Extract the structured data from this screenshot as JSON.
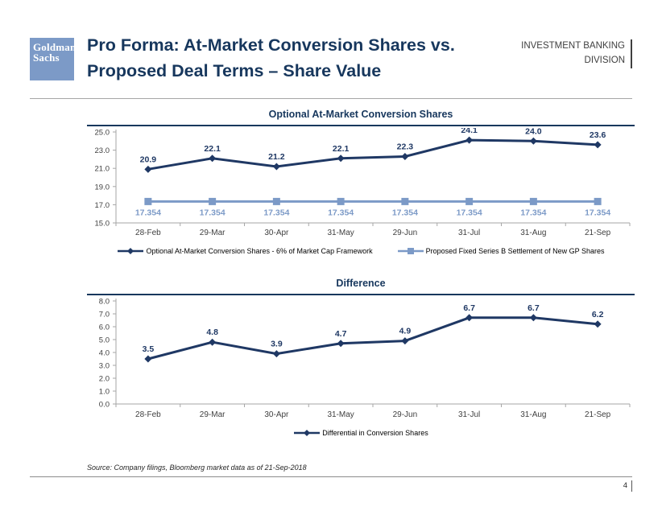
{
  "header": {
    "logo_line1": "Goldman",
    "logo_line2": "Sachs",
    "title_line1": "Pro Forma: At-Market Conversion Shares vs.",
    "title_line2": "Proposed Deal Terms – Share Value",
    "division_line1": "INVESTMENT BANKING",
    "division_line2": "DIVISION"
  },
  "footer": {
    "source": "Source: Company filings, Bloomberg market data as of 21-Sep-2018",
    "page_number": "4"
  },
  "colors": {
    "navy": "#17375D",
    "series_navy": "#1F3864",
    "series_light_blue": "#7C9AC7",
    "axis_gray": "#A6A6A6",
    "tick_text": "#3F3F3F"
  },
  "chart_data": [
    {
      "type": "line",
      "title": "Optional At-Market Conversion Shares",
      "categories": [
        "28-Feb",
        "29-Mar",
        "30-Apr",
        "31-May",
        "29-Jun",
        "31-Jul",
        "31-Aug",
        "21-Sep"
      ],
      "series": [
        {
          "name": "Optional At-Market Conversion Shares - 6% of Market Cap Framework",
          "values": [
            20.9,
            22.1,
            21.2,
            22.1,
            22.3,
            24.1,
            24.0,
            23.6
          ],
          "color": "#1F3864",
          "marker": "diamond",
          "label_position": "above",
          "label_decimals": 1
        },
        {
          "name": "Proposed Fixed Series B Settlement of New GP Shares",
          "values": [
            17.354,
            17.354,
            17.354,
            17.354,
            17.354,
            17.354,
            17.354,
            17.354
          ],
          "color": "#7C9AC7",
          "marker": "square",
          "label_position": "below",
          "label_decimals": 3
        }
      ],
      "ylim": [
        15.0,
        25.0
      ],
      "ytick_step": 2.0,
      "grid": false,
      "legend_position": "bottom"
    },
    {
      "type": "line",
      "title": "Difference",
      "categories": [
        "28-Feb",
        "29-Mar",
        "30-Apr",
        "31-May",
        "29-Jun",
        "31-Jul",
        "31-Aug",
        "21-Sep"
      ],
      "series": [
        {
          "name": "Differential in Conversion Shares",
          "values": [
            3.5,
            4.8,
            3.9,
            4.7,
            4.9,
            6.7,
            6.7,
            6.2
          ],
          "color": "#1F3864",
          "marker": "diamond",
          "label_position": "above",
          "label_decimals": 1
        }
      ],
      "ylim": [
        0.0,
        8.0
      ],
      "ytick_step": 1.0,
      "grid": false,
      "legend_position": "bottom"
    }
  ]
}
